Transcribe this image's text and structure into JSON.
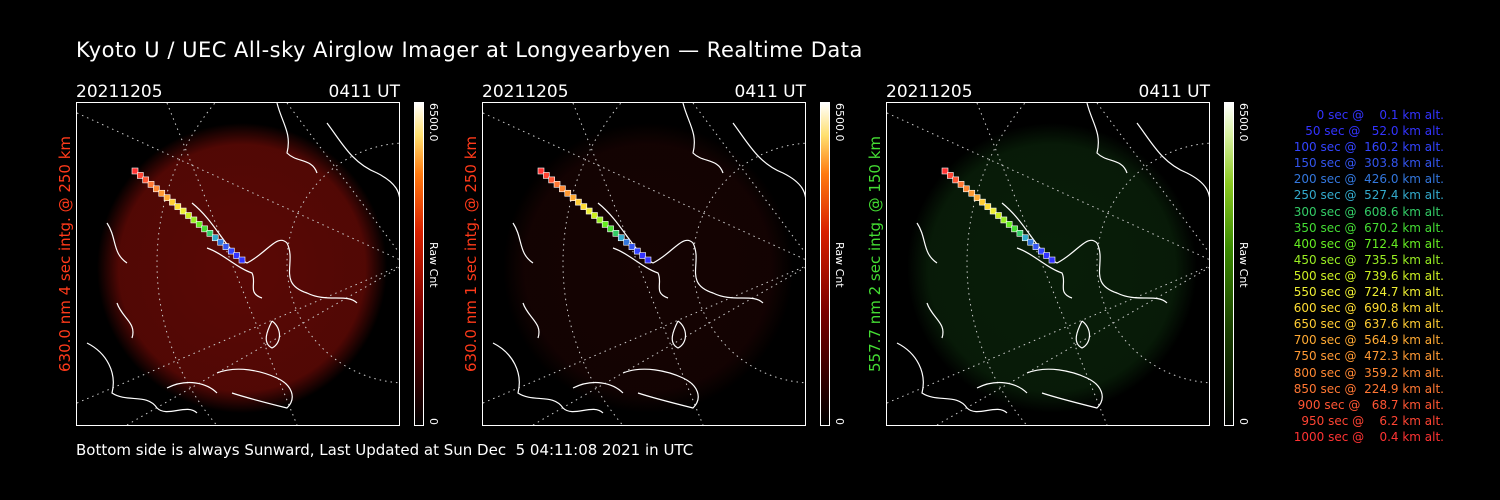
{
  "title": "Kyoto U / UEC All-sky Airglow Imager at Longyearbyen — Realtime Data",
  "footer": "Bottom side is always Sunward, Last Updated at Sun Dec  5 04:11:08 2021 in UTC",
  "colors": {
    "red": "#ff3a1a",
    "green": "#44dd33"
  },
  "panels": [
    {
      "date": "20211205",
      "time": "0411 UT",
      "side_label": "630.0 nm 4 sec intg. @ 250 km",
      "side_color": "#ff3a1a",
      "cbar_max": "6500.0",
      "cbar_min": "0",
      "cbar_unit": "Raw Cnt",
      "cbar_gradient": "linear-gradient(to top, #000 0%, #7a0000 35%, #d82000 60%, #ff7a10 78%, #ffe070 90%, #ffffff 100%)",
      "glow": "#6a0a06",
      "glow_opacity": 0.85
    },
    {
      "date": "20211205",
      "time": "0411 UT",
      "side_label": "630.0 nm 1 sec intg. @ 250 km",
      "side_color": "#ff3a1a",
      "cbar_max": "6500.0",
      "cbar_min": "0",
      "cbar_unit": "Raw Cnt",
      "cbar_gradient": "linear-gradient(to top, #000 0%, #7a0000 35%, #d82000 60%, #ff7a10 78%, #ffe070 90%, #ffffff 100%)",
      "glow": "#2a0604",
      "glow_opacity": 0.5
    },
    {
      "date": "20211205",
      "time": "0411 UT",
      "side_label": "557.7 nm 2 sec intg. @ 150 km",
      "side_color": "#44dd33",
      "cbar_max": "6500.0",
      "cbar_min": "0",
      "cbar_unit": "Raw Cnt",
      "cbar_gradient": "linear-gradient(to top, #000 0%, #1a4000 30%, #3a8a00 55%, #8ac820 75%, #d8f0a0 90%, #ffffff 100%)",
      "glow": "#0c2a0c",
      "glow_opacity": 0.7
    }
  ],
  "legend": [
    {
      "text": "   0 sec @    0.1 km alt.",
      "color": "#3333ff"
    },
    {
      "text": "  50 sec @   52.0 km alt.",
      "color": "#3333ff"
    },
    {
      "text": " 100 sec @  160.2 km alt.",
      "color": "#3344ff"
    },
    {
      "text": " 150 sec @  303.8 km alt.",
      "color": "#3355ee"
    },
    {
      "text": " 200 sec @  426.0 km alt.",
      "color": "#3377dd"
    },
    {
      "text": " 250 sec @  527.4 km alt.",
      "color": "#33aacc"
    },
    {
      "text": " 300 sec @  608.6 km alt.",
      "color": "#33cc66"
    },
    {
      "text": " 350 sec @  670.2 km alt.",
      "color": "#44dd33"
    },
    {
      "text": " 400 sec @  712.4 km alt.",
      "color": "#66ee22"
    },
    {
      "text": " 450 sec @  735.5 km alt.",
      "color": "#99ee22"
    },
    {
      "text": " 500 sec @  739.6 km alt.",
      "color": "#ccee22"
    },
    {
      "text": " 550 sec @  724.7 km alt.",
      "color": "#eeee33"
    },
    {
      "text": " 600 sec @  690.8 km alt.",
      "color": "#ffdd33"
    },
    {
      "text": " 650 sec @  637.6 km alt.",
      "color": "#ffcc33"
    },
    {
      "text": " 700 sec @  564.9 km alt.",
      "color": "#ffaa33"
    },
    {
      "text": " 750 sec @  472.3 km alt.",
      "color": "#ff9933"
    },
    {
      "text": " 800 sec @  359.2 km alt.",
      "color": "#ff8833"
    },
    {
      "text": " 850 sec @  224.9 km alt.",
      "color": "#ff7733"
    },
    {
      "text": " 900 sec @   68.7 km alt.",
      "color": "#ff5533"
    },
    {
      "text": " 950 sec @    6.2 km alt.",
      "color": "#ff4433"
    },
    {
      "text": "1000 sec @    0.4 km alt.",
      "color": "#ff3333"
    }
  ]
}
